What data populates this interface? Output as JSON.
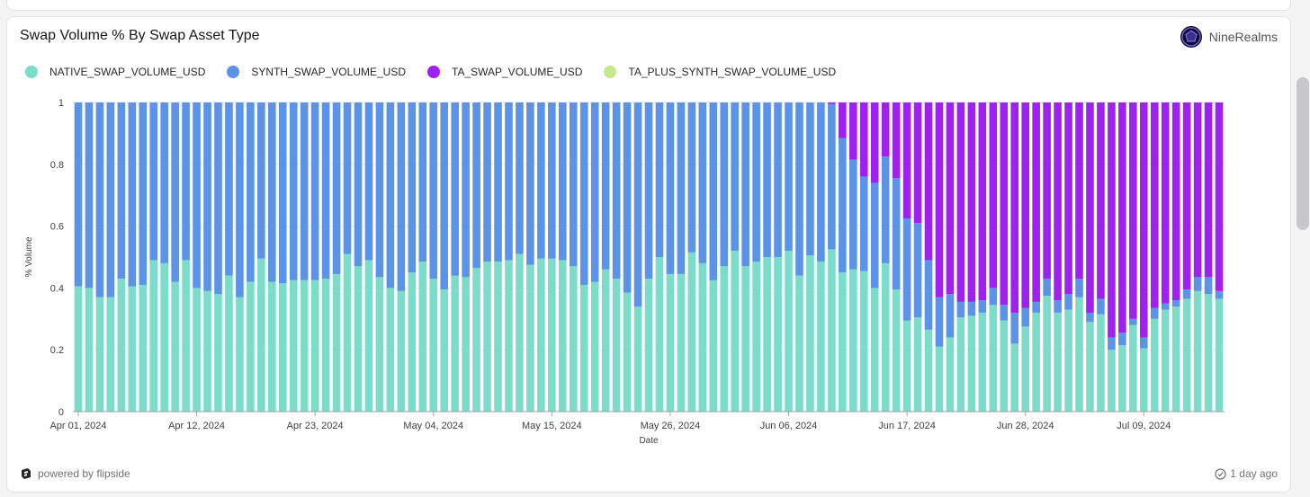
{
  "card": {
    "title": "Swap Volume % By Swap Asset Type",
    "brand": "NineRealms",
    "powered_by": "powered by flipside",
    "updated": "1 day ago"
  },
  "chart_data": {
    "type": "bar",
    "stacked": true,
    "title": "Swap Volume % By Swap Asset Type",
    "xlabel": "Date",
    "ylabel": "% Volume",
    "ylim": [
      0,
      1
    ],
    "yticks": [
      "0",
      "0.2",
      "0.4",
      "0.6",
      "0.8",
      "1"
    ],
    "xtick_labels": [
      "Apr 01, 2024",
      "Apr 12, 2024",
      "Apr 23, 2024",
      "May 04, 2024",
      "May 15, 2024",
      "May 26, 2024",
      "Jun 06, 2024",
      "Jun 17, 2024",
      "Jun 28, 2024",
      "Jul 09, 2024"
    ],
    "xtick_every": 11,
    "start_date": "2024-04-01",
    "num_days": 107,
    "series": [
      {
        "name": "NATIVE_SWAP_VOLUME_USD",
        "color": "#7bdcca",
        "values": [
          0.405,
          0.4,
          0.37,
          0.37,
          0.43,
          0.405,
          0.41,
          0.49,
          0.48,
          0.42,
          0.49,
          0.4,
          0.39,
          0.38,
          0.44,
          0.37,
          0.42,
          0.495,
          0.42,
          0.415,
          0.425,
          0.425,
          0.425,
          0.43,
          0.445,
          0.51,
          0.47,
          0.49,
          0.435,
          0.4,
          0.39,
          0.45,
          0.485,
          0.43,
          0.395,
          0.44,
          0.435,
          0.465,
          0.485,
          0.485,
          0.49,
          0.51,
          0.475,
          0.495,
          0.495,
          0.49,
          0.47,
          0.41,
          0.42,
          0.46,
          0.43,
          0.385,
          0.34,
          0.43,
          0.5,
          0.445,
          0.445,
          0.515,
          0.48,
          0.425,
          0.47,
          0.52,
          0.47,
          0.485,
          0.5,
          0.5,
          0.52,
          0.44,
          0.505,
          0.485,
          0.525,
          0.45,
          0.46,
          0.455,
          0.4,
          0.48,
          0.395,
          0.295,
          0.305,
          0.265,
          0.21,
          0.24,
          0.305,
          0.31,
          0.32,
          0.345,
          0.295,
          0.22,
          0.275,
          0.32,
          0.375,
          0.32,
          0.33,
          0.37,
          0.29,
          0.315,
          0.2,
          0.215,
          0.28,
          0.205,
          0.3,
          0.33,
          0.34,
          0.365,
          0.39,
          0.38,
          0.365
        ]
      },
      {
        "name": "SYNTH_SWAP_VOLUME_USD",
        "color": "#5b93e8",
        "values": [
          0.595,
          0.6,
          0.63,
          0.63,
          0.57,
          0.595,
          0.59,
          0.51,
          0.52,
          0.58,
          0.51,
          0.6,
          0.61,
          0.62,
          0.56,
          0.63,
          0.58,
          0.505,
          0.58,
          0.585,
          0.575,
          0.575,
          0.575,
          0.57,
          0.555,
          0.49,
          0.53,
          0.51,
          0.565,
          0.6,
          0.61,
          0.55,
          0.515,
          0.57,
          0.605,
          0.56,
          0.565,
          0.535,
          0.515,
          0.515,
          0.51,
          0.49,
          0.525,
          0.505,
          0.505,
          0.51,
          0.53,
          0.59,
          0.58,
          0.54,
          0.57,
          0.615,
          0.66,
          0.57,
          0.5,
          0.555,
          0.555,
          0.485,
          0.52,
          0.575,
          0.53,
          0.48,
          0.53,
          0.515,
          0.5,
          0.5,
          0.48,
          0.56,
          0.495,
          0.515,
          0.47,
          0.435,
          0.355,
          0.305,
          0.34,
          0.345,
          0.36,
          0.33,
          0.305,
          0.225,
          0.16,
          0.14,
          0.05,
          0.045,
          0.04,
          0.055,
          0.05,
          0.1,
          0.06,
          0.035,
          0.055,
          0.04,
          0.05,
          0.06,
          0.03,
          0.05,
          0.04,
          0.04,
          0.02,
          0.035,
          0.035,
          0.02,
          0.02,
          0.03,
          0.045,
          0.055,
          0.025
        ]
      },
      {
        "name": "TA_SWAP_VOLUME_USD",
        "color": "#a020f0",
        "values": [
          0,
          0,
          0,
          0,
          0,
          0,
          0,
          0,
          0,
          0,
          0,
          0,
          0,
          0,
          0,
          0,
          0,
          0,
          0,
          0,
          0,
          0,
          0,
          0,
          0,
          0,
          0,
          0,
          0,
          0,
          0,
          0,
          0,
          0,
          0,
          0,
          0,
          0,
          0,
          0,
          0,
          0,
          0,
          0,
          0,
          0,
          0,
          0,
          0,
          0,
          0,
          0,
          0,
          0,
          0,
          0,
          0,
          0,
          0,
          0,
          0,
          0,
          0,
          0,
          0,
          0,
          0,
          0,
          0,
          0,
          0.005,
          0.115,
          0.185,
          0.24,
          0.26,
          0.175,
          0.245,
          0.375,
          0.39,
          0.51,
          0.63,
          0.62,
          0.645,
          0.645,
          0.64,
          0.6,
          0.655,
          0.68,
          0.665,
          0.645,
          0.57,
          0.64,
          0.62,
          0.57,
          0.68,
          0.635,
          0.76,
          0.745,
          0.7,
          0.76,
          0.665,
          0.65,
          0.64,
          0.605,
          0.565,
          0.565,
          0.61
        ]
      },
      {
        "name": "TA_PLUS_SYNTH_SWAP_VOLUME_USD",
        "color": "#c5e88a",
        "values": []
      }
    ]
  }
}
